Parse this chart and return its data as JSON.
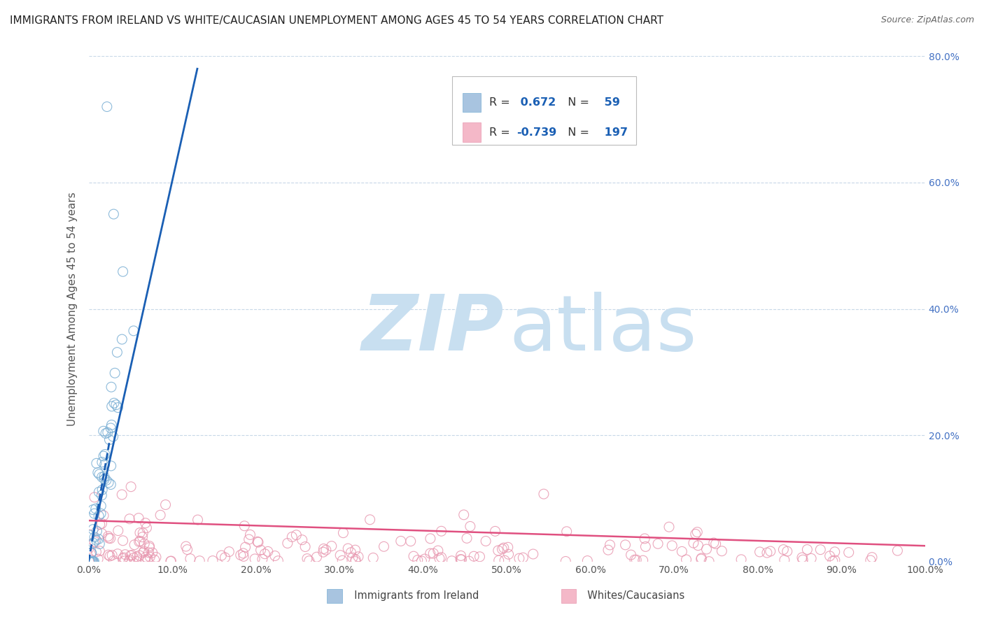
{
  "title": "IMMIGRANTS FROM IRELAND VS WHITE/CAUCASIAN UNEMPLOYMENT AMONG AGES 45 TO 54 YEARS CORRELATION CHART",
  "source": "Source: ZipAtlas.com",
  "ylabel": "Unemployment Among Ages 45 to 54 years",
  "legend1_label": "Immigrants from Ireland",
  "legend2_label": "Whites/Caucasians",
  "r1": 0.672,
  "n1": 59,
  "r2": -0.739,
  "n2": 197,
  "blue_marker_color": "#a8c4e0",
  "blue_edge_color": "#7aafd4",
  "blue_line_color": "#1a5fb4",
  "pink_marker_color": "#f4b8c8",
  "pink_edge_color": "#e898b0",
  "pink_line_color": "#e05080",
  "watermark_zip_color": "#c8dff0",
  "watermark_atlas_color": "#c8dff0",
  "background_color": "#ffffff",
  "grid_color": "#c8d8e8",
  "xlim": [
    0.0,
    1.0
  ],
  "ylim": [
    0.0,
    0.8
  ],
  "xtick_vals": [
    0.0,
    0.1,
    0.2,
    0.3,
    0.4,
    0.5,
    0.6,
    0.7,
    0.8,
    0.9,
    1.0
  ],
  "xtick_labels": [
    "0.0%",
    "10.0%",
    "20.0%",
    "30.0%",
    "40.0%",
    "50.0%",
    "60.0%",
    "70.0%",
    "80.0%",
    "90.0%",
    "100.0%"
  ],
  "ytick_vals": [
    0.0,
    0.2,
    0.4,
    0.6,
    0.8
  ],
  "ytick_labels": [
    "0.0%",
    "20.0%",
    "40.0%",
    "60.0%",
    "80.0%"
  ],
  "legend_text_color": "#333333",
  "legend_rval_color": "#1a5fb4",
  "title_fontsize": 11,
  "axis_tick_fontsize": 10,
  "ylabel_fontsize": 11
}
